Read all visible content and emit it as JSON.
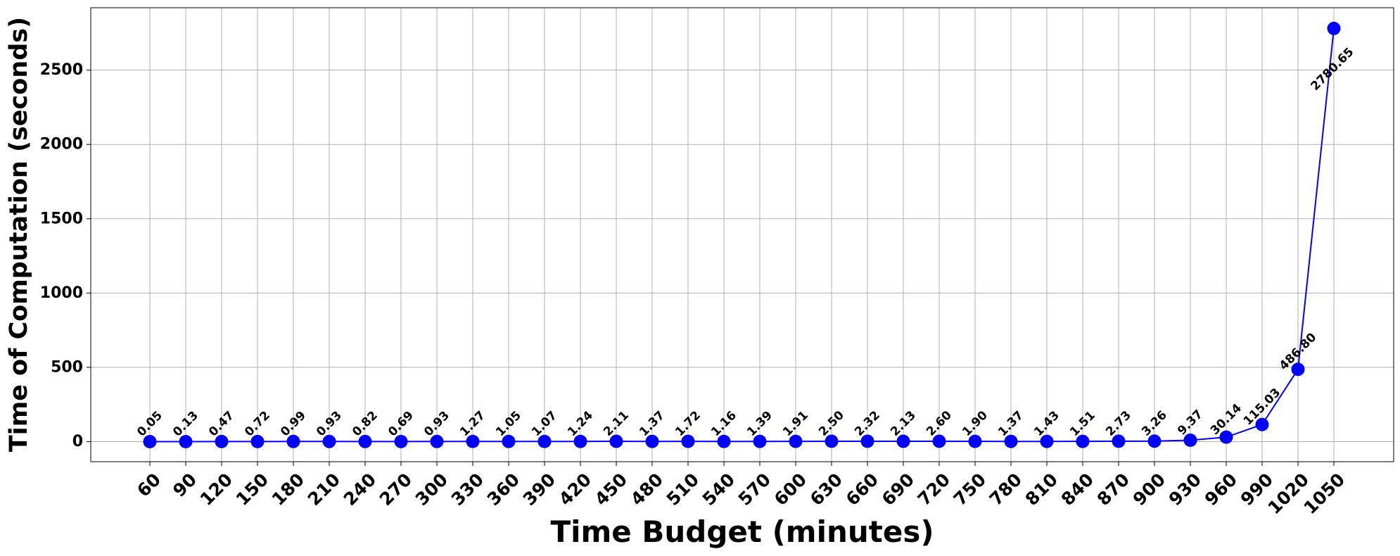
{
  "chart_data": {
    "type": "line",
    "title": "",
    "xlabel": "Time Budget (minutes)",
    "ylabel": "Time of Computation (seconds)",
    "x": [
      60,
      90,
      120,
      150,
      180,
      210,
      240,
      270,
      300,
      330,
      360,
      390,
      420,
      450,
      480,
      510,
      540,
      570,
      600,
      630,
      660,
      690,
      720,
      750,
      780,
      810,
      840,
      870,
      900,
      930,
      960,
      990,
      1020,
      1050
    ],
    "y": [
      0.05,
      0.13,
      0.47,
      0.72,
      0.99,
      0.93,
      0.82,
      0.69,
      0.93,
      1.27,
      1.05,
      1.07,
      1.24,
      2.11,
      1.37,
      1.72,
      1.16,
      1.39,
      1.91,
      2.5,
      2.32,
      2.13,
      2.6,
      1.9,
      1.37,
      1.43,
      1.51,
      2.73,
      3.26,
      9.37,
      30.14,
      115.03,
      486.8,
      2780.65
    ],
    "data_labels": [
      "0.05",
      "0.13",
      "0.47",
      "0.72",
      "0.99",
      "0.93",
      "0.82",
      "0.69",
      "0.93",
      "1.27",
      "1.05",
      "1.07",
      "1.24",
      "2.11",
      "1.37",
      "1.72",
      "1.16",
      "1.39",
      "1.91",
      "2.50",
      "2.32",
      "2.13",
      "2.60",
      "1.90",
      "1.37",
      "1.43",
      "1.51",
      "2.73",
      "3.26",
      "9.37",
      "30.14",
      "115.03",
      "486.80",
      "2780.65"
    ],
    "yticks": [
      0,
      500,
      1000,
      1500,
      2000,
      2500
    ],
    "ylim": [
      -135,
      2920
    ],
    "grid": true,
    "legend": "none",
    "color": "#0000ff"
  }
}
